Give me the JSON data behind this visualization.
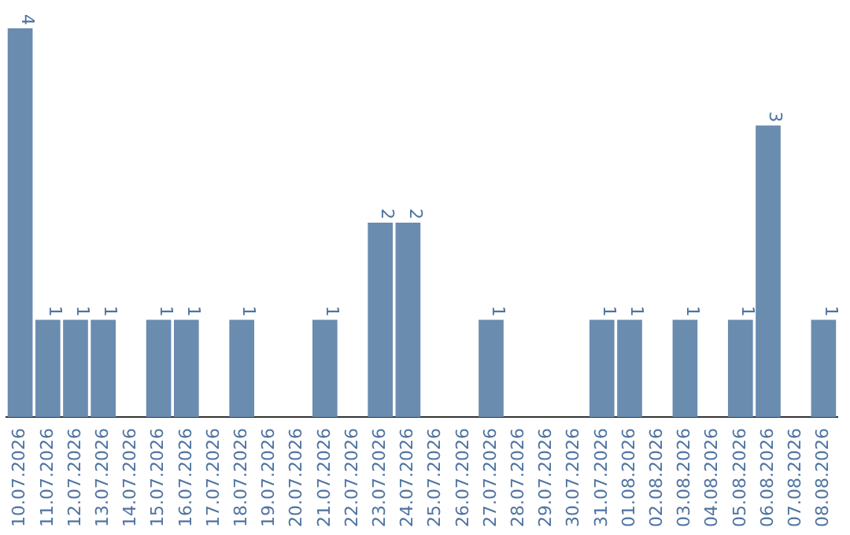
{
  "chart_data": {
    "type": "bar",
    "categories": [
      "10.07.2026",
      "11.07.2026",
      "12.07.2026",
      "13.07.2026",
      "14.07.2026",
      "15.07.2026",
      "16.07.2026",
      "17.07.2026",
      "18.07.2026",
      "19.07.2026",
      "20.07.2026",
      "21.07.2026",
      "22.07.2026",
      "23.07.2026",
      "24.07.2026",
      "25.07.2026",
      "26.07.2026",
      "27.07.2026",
      "28.07.2026",
      "29.07.2026",
      "30.07.2026",
      "31.07.2026",
      "01.08.2026",
      "02.08.2026",
      "03.08.2026",
      "04.08.2026",
      "05.08.2026",
      "06.08.2026",
      "07.08.2026",
      "08.08.2026"
    ],
    "values": [
      4,
      1,
      1,
      1,
      0,
      1,
      1,
      0,
      1,
      0,
      0,
      1,
      0,
      2,
      2,
      0,
      0,
      1,
      0,
      0,
      0,
      1,
      1,
      0,
      1,
      0,
      1,
      3,
      0,
      1
    ],
    "value_labels": [
      "4",
      "1",
      "1",
      "1",
      null,
      "1",
      "1",
      null,
      "1",
      null,
      null,
      "1",
      null,
      "2",
      "2",
      null,
      null,
      "1",
      null,
      null,
      null,
      "1",
      "1",
      null,
      "1",
      null,
      "1",
      "3",
      null,
      "1"
    ],
    "color": "#6a8caf",
    "ylim": [
      0,
      4
    ],
    "tick_labels": "x",
    "grid": false,
    "legend": false
  }
}
